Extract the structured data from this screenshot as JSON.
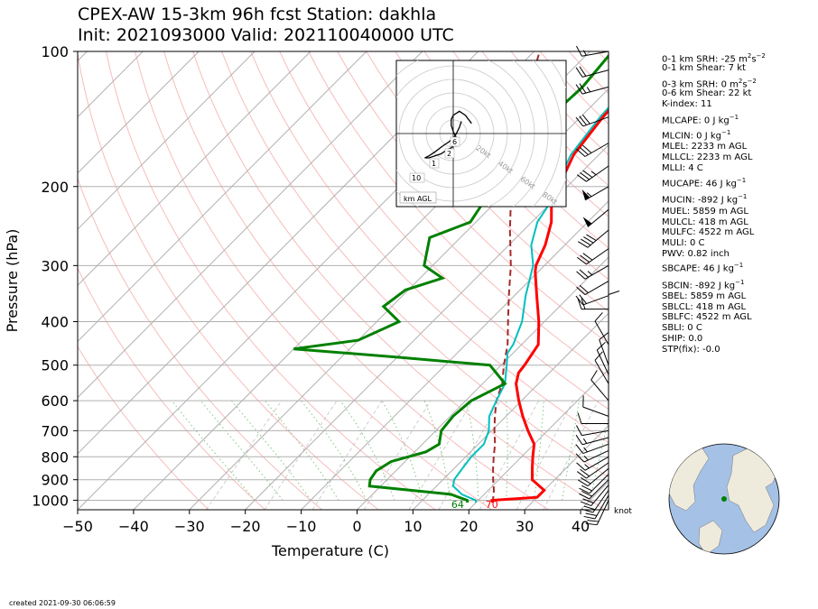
{
  "header": {
    "title_line1": "CPEX-AW 15-3km  96h fcst  Station: dakhla",
    "title_line2": "Init: 2021093000  Valid: 202110040000 UTC"
  },
  "footer": {
    "created": "created 2021-09-30 06:06:59"
  },
  "chart_data": {
    "type": "skew-t",
    "xlabel": "Temperature (C)",
    "ylabel": "Pressure (hPa)",
    "xlim": [
      -50,
      45
    ],
    "ylim": [
      1050,
      100
    ],
    "x_ticks": [
      -50,
      -40,
      -30,
      -20,
      -10,
      0,
      10,
      20,
      30,
      40
    ],
    "y_ticks": [
      100,
      200,
      300,
      400,
      500,
      600,
      700,
      800,
      900,
      1000
    ],
    "surface_temp_label": "70",
    "surface_dewpoint_label": "64",
    "barb_units_label": "knot",
    "colors": {
      "temperature": "#ff0000",
      "dewpoint": "#008000",
      "wetbulb": "#00bfbf",
      "parcel": "#a52a2a"
    },
    "temperature": [
      [
        1012,
        23
      ],
      [
        1000,
        22.5
      ],
      [
        985,
        30
      ],
      [
        950,
        30
      ],
      [
        900,
        26
      ],
      [
        850,
        24
      ],
      [
        800,
        22
      ],
      [
        750,
        20
      ],
      [
        700,
        16.5
      ],
      [
        650,
        13
      ],
      [
        600,
        9.5
      ],
      [
        550,
        6
      ],
      [
        520,
        4.5
      ],
      [
        500,
        4.2
      ],
      [
        450,
        3
      ],
      [
        400,
        -1
      ],
      [
        350,
        -6
      ],
      [
        310,
        -10.5
      ],
      [
        300,
        -11.5
      ],
      [
        270,
        -13.5
      ],
      [
        240,
        -16.5
      ],
      [
        220,
        -19.5
      ],
      [
        200,
        -21.5
      ],
      [
        170,
        -24.5
      ],
      [
        140,
        -26
      ],
      [
        120,
        -26.5
      ],
      [
        100,
        -24
      ]
    ],
    "dewpoint": [
      [
        1012,
        18.5
      ],
      [
        1000,
        18
      ],
      [
        970,
        14
      ],
      [
        930,
        -2
      ],
      [
        900,
        -3
      ],
      [
        860,
        -3.5
      ],
      [
        820,
        -2.5
      ],
      [
        780,
        2
      ],
      [
        750,
        3
      ],
      [
        700,
        1
      ],
      [
        650,
        0.5
      ],
      [
        600,
        1
      ],
      [
        550,
        4
      ],
      [
        500,
        -2
      ],
      [
        480,
        -20
      ],
      [
        460,
        -40
      ],
      [
        440,
        -30
      ],
      [
        400,
        -26
      ],
      [
        370,
        -31.5
      ],
      [
        340,
        -30.5
      ],
      [
        320,
        -26
      ],
      [
        300,
        -31.5
      ],
      [
        260,
        -35.5
      ],
      [
        240,
        -31
      ],
      [
        220,
        -32
      ],
      [
        200,
        -39
      ],
      [
        180,
        -36.5
      ],
      [
        170,
        -35
      ],
      [
        140,
        -35.5
      ],
      [
        120,
        -35
      ],
      [
        100,
        -36
      ]
    ],
    "wetbulb": [
      [
        1012,
        20
      ],
      [
        1000,
        19.5
      ],
      [
        970,
        16
      ],
      [
        930,
        13
      ],
      [
        900,
        12
      ],
      [
        850,
        11.5
      ],
      [
        800,
        11
      ],
      [
        750,
        11
      ],
      [
        700,
        9.5
      ],
      [
        650,
        7
      ],
      [
        600,
        5.5
      ],
      [
        550,
        4
      ],
      [
        500,
        1
      ],
      [
        470,
        -1
      ],
      [
        450,
        -1.5
      ],
      [
        400,
        -4
      ],
      [
        350,
        -8
      ],
      [
        300,
        -12
      ],
      [
        270,
        -16
      ],
      [
        240,
        -19
      ],
      [
        220,
        -20
      ],
      [
        200,
        -22
      ],
      [
        170,
        -25
      ],
      [
        140,
        -26.5
      ],
      [
        120,
        -27
      ],
      [
        100,
        -25
      ]
    ],
    "parcel": [
      [
        1012,
        23
      ],
      [
        950,
        21
      ],
      [
        900,
        19
      ],
      [
        850,
        17
      ],
      [
        800,
        15
      ],
      [
        750,
        13
      ],
      [
        700,
        10.5
      ],
      [
        650,
        8
      ],
      [
        600,
        5.5
      ],
      [
        550,
        3.5
      ],
      [
        500,
        0.5
      ],
      [
        450,
        -2.5
      ],
      [
        400,
        -6.5
      ],
      [
        350,
        -11
      ],
      [
        300,
        -16
      ],
      [
        250,
        -22.5
      ],
      [
        200,
        -30
      ],
      [
        150,
        -39
      ],
      [
        100,
        -49
      ]
    ],
    "hodograph": {
      "labels": [
        "1",
        "2",
        "6",
        "10"
      ],
      "ring_labels": [
        "20kt",
        "40kt",
        "60kt",
        "80kt"
      ],
      "legend": "km AGL",
      "points": [
        [
          4,
          -6
        ],
        [
          3,
          -3
        ],
        [
          1,
          1
        ],
        [
          -2,
          4
        ],
        [
          -5,
          6
        ],
        [
          -9,
          9
        ],
        [
          -12,
          11
        ],
        [
          -14,
          12
        ],
        [
          -12,
          12
        ],
        [
          -9,
          11
        ],
        [
          -6,
          10
        ],
        [
          -3,
          8
        ],
        [
          -1,
          7
        ],
        [
          1,
          5
        ],
        [
          2,
          3
        ],
        [
          0,
          -1
        ],
        [
          -1,
          -4
        ],
        [
          -1,
          -7
        ],
        [
          0,
          -9
        ],
        [
          3,
          -11
        ],
        [
          6,
          -9
        ],
        [
          9,
          -5
        ]
      ]
    },
    "barbs": [
      [
        1000,
        205,
        18
      ],
      [
        975,
        210,
        22
      ],
      [
        950,
        215,
        22
      ],
      [
        925,
        220,
        20
      ],
      [
        900,
        225,
        20
      ],
      [
        875,
        225,
        20
      ],
      [
        850,
        230,
        18
      ],
      [
        825,
        235,
        18
      ],
      [
        800,
        240,
        16
      ],
      [
        775,
        245,
        15
      ],
      [
        750,
        250,
        14
      ],
      [
        725,
        255,
        14
      ],
      [
        700,
        260,
        12
      ],
      [
        675,
        270,
        10
      ],
      [
        650,
        290,
        8
      ],
      [
        600,
        320,
        10
      ],
      [
        550,
        330,
        12
      ],
      [
        525,
        335,
        12
      ],
      [
        500,
        340,
        8
      ],
      [
        450,
        330,
        8
      ],
      [
        400,
        0,
        10
      ],
      [
        375,
        270,
        20
      ],
      [
        350,
        250,
        20
      ],
      [
        325,
        240,
        22
      ],
      [
        300,
        240,
        26
      ],
      [
        275,
        235,
        30
      ],
      [
        250,
        230,
        38
      ],
      [
        225,
        230,
        50
      ],
      [
        200,
        240,
        55
      ],
      [
        180,
        235,
        35
      ],
      [
        160,
        240,
        30
      ],
      [
        140,
        250,
        28
      ],
      [
        120,
        255,
        25
      ],
      [
        110,
        255,
        20
      ],
      [
        100,
        260,
        15
      ]
    ]
  },
  "indices": [
    {
      "text": "0-1 km SRH: -25 m",
      "sup": "2",
      "text2": "s",
      "sup2": "−2"
    },
    {
      "text": "0-1 km Shear: 7 kt"
    },
    {
      "text": "0-3 km SRH: 0 m",
      "sup": "2",
      "text2": "s",
      "sup2": "−2"
    },
    {
      "text": "0-6 km Shear: 22 kt"
    },
    {
      "text": "K-index: 11"
    },
    {
      "text": "MLCAPE: 0 J kg",
      "sup": "−1"
    },
    {
      "text": "MLCIN: 0 J kg",
      "sup": "−1"
    },
    {
      "text": "MLEL: 2233 m AGL"
    },
    {
      "text": "MLLCL: 2233 m AGL"
    },
    {
      "text": "MLLI: 4 C"
    },
    {
      "text": "MUCAPE: 46 J kg",
      "sup": "−1"
    },
    {
      "text": "MUCIN: -892 J kg",
      "sup": "−1"
    },
    {
      "text": "MUEL: 5859 m AGL"
    },
    {
      "text": "MULCL: 418 m AGL"
    },
    {
      "text": "MULFC: 4522 m AGL"
    },
    {
      "text": "MULI: 0 C"
    },
    {
      "text": "PWV: 0.82 inch"
    },
    {
      "text": "SBCAPE: 46 J kg",
      "sup": "−1"
    },
    {
      "text": "SBCIN: -892 J kg",
      "sup": "−1"
    },
    {
      "text": "SBEL: 5859 m AGL"
    },
    {
      "text": "SBLCL: 418 m AGL"
    },
    {
      "text": "SBLFC: 4522 m AGL"
    },
    {
      "text": "SBLI: 0 C"
    },
    {
      "text": "SHIP: 0.0"
    },
    {
      "text": "STP(fix): -0.0"
    }
  ]
}
